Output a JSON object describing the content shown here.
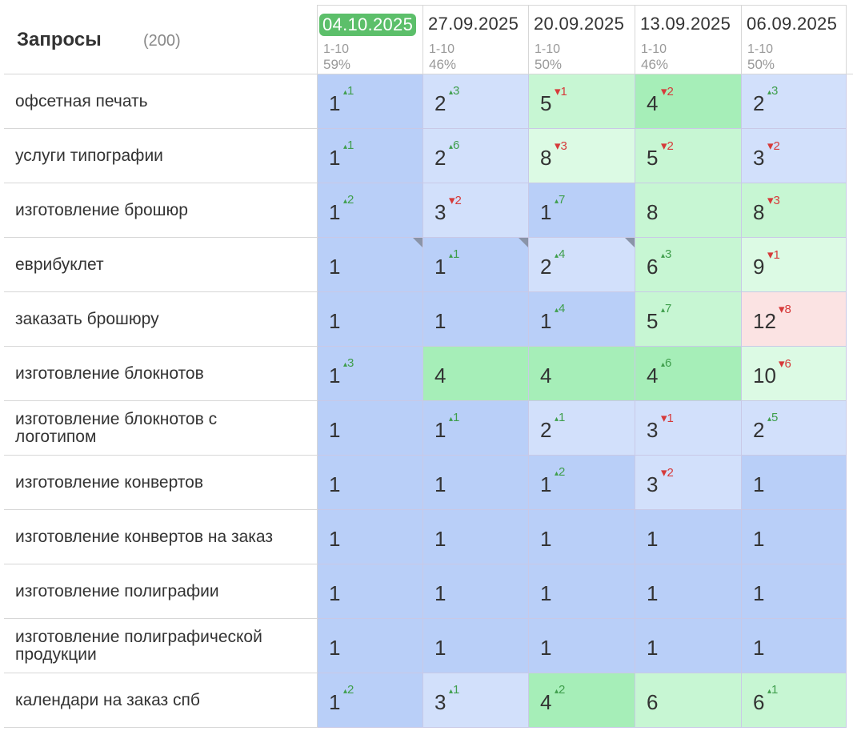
{
  "header": {
    "title": "Запросы",
    "count": "(200)"
  },
  "dates": [
    {
      "label": "04.10.2025",
      "range": "1-10",
      "pct": "59%",
      "active": true
    },
    {
      "label": "27.09.2025",
      "range": "1-10",
      "pct": "46%",
      "active": false
    },
    {
      "label": "20.09.2025",
      "range": "1-10",
      "pct": "50%",
      "active": false
    },
    {
      "label": "13.09.2025",
      "range": "1-10",
      "pct": "46%",
      "active": false
    },
    {
      "label": "06.09.2025",
      "range": "1-10",
      "pct": "50%",
      "active": false
    }
  ],
  "colors": {
    "blue": "#b9cff8",
    "blue_light": "#d2e0fb",
    "green": "#a6eeb8",
    "green_light": "#c7f6d3",
    "green_pale": "#dcfae4",
    "red_light": "#fbe3e3"
  },
  "rows": [
    {
      "query": "офсетная печать",
      "cells": [
        {
          "v": "1",
          "d": "1",
          "dir": "up",
          "c": "blue"
        },
        {
          "v": "2",
          "d": "3",
          "dir": "up",
          "c": "blue_light"
        },
        {
          "v": "5",
          "d": "1",
          "dir": "down",
          "c": "green_light"
        },
        {
          "v": "4",
          "d": "2",
          "dir": "down",
          "c": "green"
        },
        {
          "v": "2",
          "d": "3",
          "dir": "up",
          "c": "blue_light"
        }
      ]
    },
    {
      "query": "услуги типографии",
      "cells": [
        {
          "v": "1",
          "d": "1",
          "dir": "up",
          "c": "blue"
        },
        {
          "v": "2",
          "d": "6",
          "dir": "up",
          "c": "blue_light"
        },
        {
          "v": "8",
          "d": "3",
          "dir": "down",
          "c": "green_pale"
        },
        {
          "v": "5",
          "d": "2",
          "dir": "down",
          "c": "green_light"
        },
        {
          "v": "3",
          "d": "2",
          "dir": "down",
          "c": "blue_light"
        }
      ]
    },
    {
      "query": "изготовление брошюр",
      "cells": [
        {
          "v": "1",
          "d": "2",
          "dir": "up",
          "c": "blue"
        },
        {
          "v": "3",
          "d": "2",
          "dir": "down",
          "c": "blue_light"
        },
        {
          "v": "1",
          "d": "7",
          "dir": "up",
          "c": "blue"
        },
        {
          "v": "8",
          "d": "",
          "dir": "",
          "c": "green_light"
        },
        {
          "v": "8",
          "d": "3",
          "dir": "down",
          "c": "green_light"
        }
      ]
    },
    {
      "query": "еврибуклет",
      "cells": [
        {
          "v": "1",
          "d": "",
          "dir": "",
          "c": "blue",
          "corner": true
        },
        {
          "v": "1",
          "d": "1",
          "dir": "up",
          "c": "blue",
          "corner": true
        },
        {
          "v": "2",
          "d": "4",
          "dir": "up",
          "c": "blue_light",
          "corner": true
        },
        {
          "v": "6",
          "d": "3",
          "dir": "up",
          "c": "green_light"
        },
        {
          "v": "9",
          "d": "1",
          "dir": "down",
          "c": "green_pale"
        }
      ]
    },
    {
      "query": "заказать брошюру",
      "cells": [
        {
          "v": "1",
          "d": "",
          "dir": "",
          "c": "blue"
        },
        {
          "v": "1",
          "d": "",
          "dir": "",
          "c": "blue"
        },
        {
          "v": "1",
          "d": "4",
          "dir": "up",
          "c": "blue"
        },
        {
          "v": "5",
          "d": "7",
          "dir": "up",
          "c": "green_light"
        },
        {
          "v": "12",
          "d": "8",
          "dir": "down",
          "c": "red_light"
        }
      ]
    },
    {
      "query": "изготовление блокнотов",
      "cells": [
        {
          "v": "1",
          "d": "3",
          "dir": "up",
          "c": "blue"
        },
        {
          "v": "4",
          "d": "",
          "dir": "",
          "c": "green"
        },
        {
          "v": "4",
          "d": "",
          "dir": "",
          "c": "green"
        },
        {
          "v": "4",
          "d": "6",
          "dir": "up",
          "c": "green"
        },
        {
          "v": "10",
          "d": "6",
          "dir": "down",
          "c": "green_pale"
        }
      ]
    },
    {
      "query": "изготовление блокнотов с логотипом",
      "cells": [
        {
          "v": "1",
          "d": "",
          "dir": "",
          "c": "blue"
        },
        {
          "v": "1",
          "d": "1",
          "dir": "up",
          "c": "blue"
        },
        {
          "v": "2",
          "d": "1",
          "dir": "up",
          "c": "blue_light"
        },
        {
          "v": "3",
          "d": "1",
          "dir": "down",
          "c": "blue_light"
        },
        {
          "v": "2",
          "d": "5",
          "dir": "up",
          "c": "blue_light"
        }
      ]
    },
    {
      "query": "изготовление конвертов",
      "cells": [
        {
          "v": "1",
          "d": "",
          "dir": "",
          "c": "blue"
        },
        {
          "v": "1",
          "d": "",
          "dir": "",
          "c": "blue"
        },
        {
          "v": "1",
          "d": "2",
          "dir": "up",
          "c": "blue"
        },
        {
          "v": "3",
          "d": "2",
          "dir": "down",
          "c": "blue_light"
        },
        {
          "v": "1",
          "d": "",
          "dir": "",
          "c": "blue"
        }
      ]
    },
    {
      "query": "изготовление конвертов на заказ",
      "cells": [
        {
          "v": "1",
          "d": "",
          "dir": "",
          "c": "blue"
        },
        {
          "v": "1",
          "d": "",
          "dir": "",
          "c": "blue"
        },
        {
          "v": "1",
          "d": "",
          "dir": "",
          "c": "blue"
        },
        {
          "v": "1",
          "d": "",
          "dir": "",
          "c": "blue"
        },
        {
          "v": "1",
          "d": "",
          "dir": "",
          "c": "blue"
        }
      ]
    },
    {
      "query": "изготовление полиграфии",
      "cells": [
        {
          "v": "1",
          "d": "",
          "dir": "",
          "c": "blue"
        },
        {
          "v": "1",
          "d": "",
          "dir": "",
          "c": "blue"
        },
        {
          "v": "1",
          "d": "",
          "dir": "",
          "c": "blue"
        },
        {
          "v": "1",
          "d": "",
          "dir": "",
          "c": "blue"
        },
        {
          "v": "1",
          "d": "",
          "dir": "",
          "c": "blue"
        }
      ]
    },
    {
      "query": "изготовление полиграфической продукции",
      "cells": [
        {
          "v": "1",
          "d": "",
          "dir": "",
          "c": "blue"
        },
        {
          "v": "1",
          "d": "",
          "dir": "",
          "c": "blue"
        },
        {
          "v": "1",
          "d": "",
          "dir": "",
          "c": "blue"
        },
        {
          "v": "1",
          "d": "",
          "dir": "",
          "c": "blue"
        },
        {
          "v": "1",
          "d": "",
          "dir": "",
          "c": "blue"
        }
      ]
    },
    {
      "query": "календари на заказ спб",
      "cells": [
        {
          "v": "1",
          "d": "2",
          "dir": "up",
          "c": "blue"
        },
        {
          "v": "3",
          "d": "1",
          "dir": "up",
          "c": "blue_light"
        },
        {
          "v": "4",
          "d": "2",
          "dir": "up",
          "c": "green"
        },
        {
          "v": "6",
          "d": "",
          "dir": "",
          "c": "green_light"
        },
        {
          "v": "6",
          "d": "1",
          "dir": "up",
          "c": "green_light"
        }
      ]
    }
  ]
}
